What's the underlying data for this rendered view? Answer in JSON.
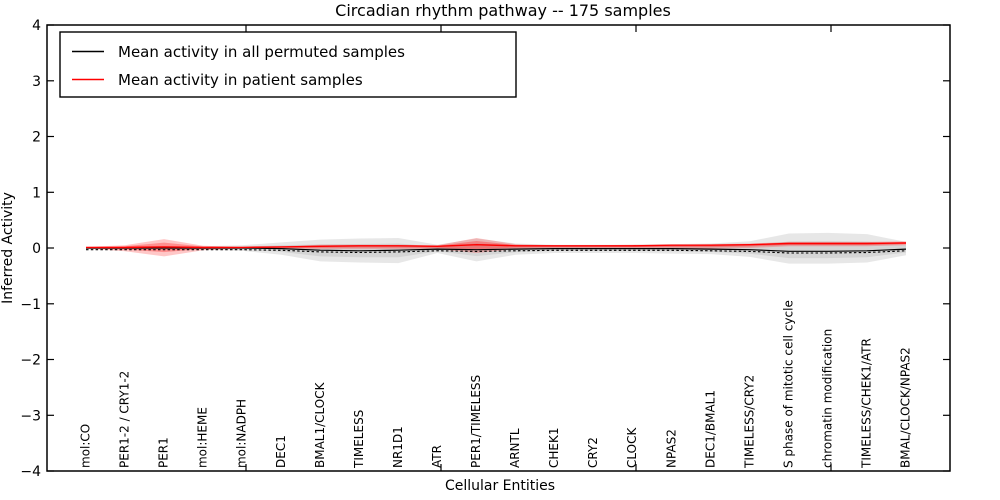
{
  "title": "Circadian rhythm pathway -- 175 samples",
  "axes": {
    "ylabel": "Inferred Activity",
    "xlabel": "Cellular Entities",
    "yticks": [
      4,
      3,
      2,
      1,
      0,
      -1,
      -2,
      -3,
      -4
    ],
    "ytick_labels": [
      "4",
      "3",
      "2",
      "1",
      "0",
      "−1",
      "−2",
      "−3",
      "−4"
    ],
    "ylim": [
      -4,
      4
    ]
  },
  "legend": {
    "entries": [
      {
        "label": "Mean activity in all permuted samples",
        "color": "#000000"
      },
      {
        "label": "Mean activity in patient samples",
        "color": "#ff0000"
      }
    ]
  },
  "chart_data": {
    "type": "line",
    "title": "Circadian rhythm pathway -- 175 samples",
    "xlabel": "Cellular Entities",
    "ylabel": "Inferred Activity",
    "ylim": [
      -4,
      4
    ],
    "grid": false,
    "legend_position": "upper left",
    "categories": [
      "mol:CO",
      "PER1-2 / CRY1-2",
      "PER1",
      "mol:HEME",
      "mol:NADPH",
      "DEC1",
      "BMAL1/CLOCK",
      "TIMELESS",
      "NR1D1",
      "ATR",
      "PER1/TIMELESS",
      "ARNTL",
      "CHEK1",
      "CRY2",
      "CLOCK",
      "NPAS2",
      "DEC1/BMAL1",
      "TIMELESS/CRY2",
      "S phase of mitotic cell cycle",
      "chromatin modification",
      "TIMELESS/CHEK1/ATR",
      "BMAL/CLOCK/NPAS2"
    ],
    "series": [
      {
        "name": "Mean activity in all permuted samples",
        "color": "#000000",
        "style": "solid-with-dashes",
        "values": [
          0.0,
          0.0,
          0.0,
          0.0,
          0.0,
          -0.01,
          -0.04,
          -0.05,
          -0.04,
          -0.02,
          -0.03,
          -0.02,
          -0.01,
          -0.01,
          -0.01,
          -0.01,
          -0.02,
          -0.03,
          -0.06,
          -0.06,
          -0.05,
          -0.02
        ]
      },
      {
        "name": "Mean activity in patient samples",
        "color": "#ff0000",
        "style": "solid",
        "values": [
          0.01,
          0.01,
          0.02,
          0.01,
          0.01,
          0.02,
          0.03,
          0.04,
          0.04,
          0.03,
          0.06,
          0.04,
          0.04,
          0.04,
          0.04,
          0.05,
          0.05,
          0.06,
          0.08,
          0.08,
          0.08,
          0.09
        ]
      }
    ],
    "bands": [
      {
        "name": "permuted samples spread",
        "color": "#aaaaaa",
        "upper": [
          0.02,
          0.02,
          0.03,
          0.03,
          0.05,
          0.1,
          0.15,
          0.17,
          0.18,
          0.06,
          0.17,
          0.08,
          0.06,
          0.06,
          0.06,
          0.07,
          0.08,
          0.12,
          0.26,
          0.27,
          0.25,
          0.11
        ],
        "lower": [
          -0.02,
          -0.02,
          -0.03,
          -0.03,
          -0.05,
          -0.12,
          -0.24,
          -0.26,
          -0.27,
          -0.09,
          -0.24,
          -0.12,
          -0.09,
          -0.09,
          -0.09,
          -0.1,
          -0.11,
          -0.16,
          -0.28,
          -0.28,
          -0.26,
          -0.13
        ]
      },
      {
        "name": "patient samples spread",
        "color": "#ff0000",
        "upper": [
          0.02,
          0.05,
          0.16,
          0.04,
          0.02,
          0.03,
          0.06,
          0.06,
          0.06,
          0.05,
          0.18,
          0.07,
          0.05,
          0.05,
          0.06,
          0.06,
          0.07,
          0.08,
          0.11,
          0.11,
          0.11,
          0.12
        ],
        "lower": [
          -0.01,
          -0.06,
          -0.15,
          -0.04,
          -0.01,
          -0.01,
          -0.02,
          -0.02,
          -0.02,
          -0.02,
          -0.09,
          -0.02,
          -0.01,
          -0.01,
          -0.01,
          -0.01,
          -0.01,
          0.0,
          0.03,
          0.03,
          0.03,
          0.05
        ]
      }
    ]
  }
}
